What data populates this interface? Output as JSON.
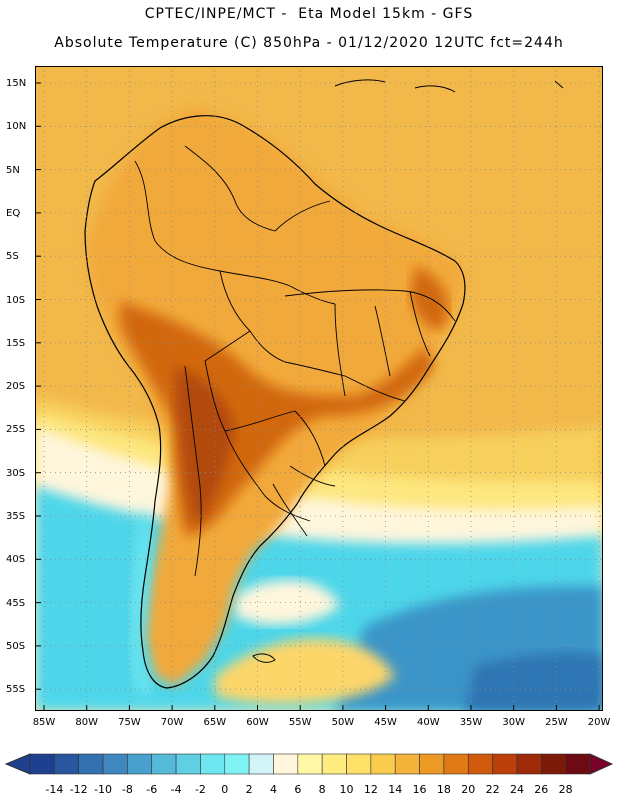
{
  "header": {
    "line1": "CPTEC/INPE/MCT -  Eta Model 15km - GFS",
    "line2": "Absolute Temperature (C) 850hPa - 01/12/2020 12UTC fct=244h"
  },
  "latitude_labels": [
    "15N",
    "10N",
    "5N",
    "EQ",
    "5S",
    "10S",
    "15S",
    "20S",
    "25S",
    "30S",
    "35S",
    "40S",
    "45S",
    "50S",
    "55S"
  ],
  "longitude_labels": [
    "85W",
    "80W",
    "75W",
    "70W",
    "65W",
    "60W",
    "55W",
    "50W",
    "45W",
    "40W",
    "35W",
    "30W",
    "25W",
    "20W"
  ],
  "colorbar": {
    "labels": [
      "-14",
      "-12",
      "-10",
      "-8",
      "-6",
      "-4",
      "-2",
      "0",
      "2",
      "4",
      "6",
      "8",
      "10",
      "12",
      "14",
      "16",
      "18",
      "20",
      "22",
      "24",
      "26",
      "28"
    ],
    "colors": [
      "#1f3f8f",
      "#2a55a0",
      "#3570b0",
      "#3f88bf",
      "#4aa0cc",
      "#55b9d9",
      "#5fcfe3",
      "#6ee6f0",
      "#7ff4f7",
      "#d2f3f7",
      "#fff6dc",
      "#fff7a8",
      "#ffec80",
      "#fde068",
      "#f9cc4c",
      "#f2b43a",
      "#ec9a24",
      "#e07a14",
      "#d25a0e",
      "#bc400c",
      "#9e2a0a",
      "#7c1a08",
      "#6e0a14"
    ],
    "min_color": "#1f3f8f",
    "max_color": "#7a0028"
  },
  "legend_colors": {
    "ocean_tropical": "#f2b84a",
    "ocean_subtropical": "#fde77f",
    "ocean_south": "#4ed6ea",
    "ocean_far_south": "#3a95c8",
    "land_warm": "#f2a93a",
    "land_hot": "#d2680e",
    "land_hottest": "#b24a10",
    "andes_cool": "#6ee6f0"
  }
}
